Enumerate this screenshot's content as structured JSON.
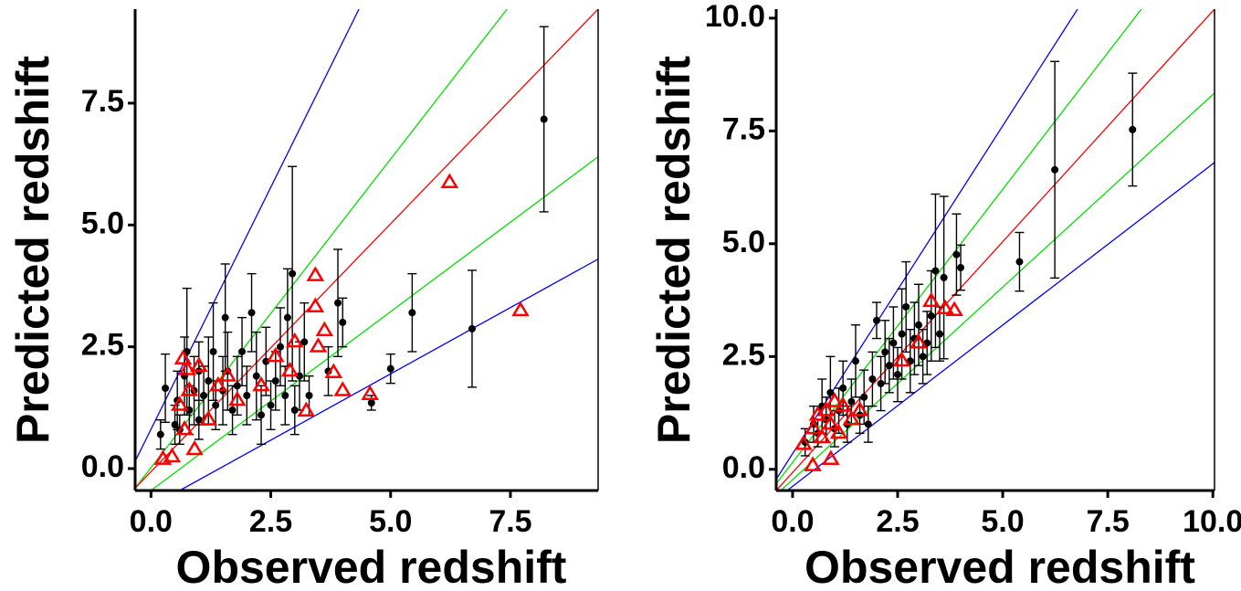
{
  "chart_data": [
    {
      "type": "scatter",
      "xlabel": "Observed redshift",
      "ylabel": "Predicted redshift",
      "xlim": [
        -0.33,
        9.33
      ],
      "ylim": [
        -0.45,
        9.43
      ],
      "xticks": [
        {
          "value": 0,
          "label": "0.0"
        },
        {
          "value": 2.5,
          "label": "2.5"
        },
        {
          "value": 5,
          "label": "5.0"
        },
        {
          "value": 7.5,
          "label": "7.5"
        }
      ],
      "yticks": [
        {
          "value": 0,
          "label": "0.0"
        },
        {
          "value": 2.5,
          "label": "2.5"
        },
        {
          "value": 5,
          "label": "5.0"
        },
        {
          "value": 7.5,
          "label": "7.5"
        }
      ],
      "lines": [
        {
          "color": "#0000ff",
          "x": [
            -0.33,
            4.34
          ],
          "y": [
            0.15,
            9.43
          ]
        },
        {
          "color": "#00e000",
          "x": [
            -0.33,
            7.43
          ],
          "y": [
            -0.4,
            9.43
          ]
        },
        {
          "color": "#ff0000",
          "x": [
            -0.33,
            9.33
          ],
          "y": [
            -0.4,
            9.43
          ]
        },
        {
          "color": "#00e000",
          "x": [
            0,
            9.33
          ],
          "y": [
            -0.45,
            6.4
          ]
        },
        {
          "color": "#0000ff",
          "x": [
            0.6,
            9.33
          ],
          "y": [
            -0.45,
            4.3
          ]
        }
      ],
      "series": [
        {
          "marker": "circle",
          "color": "#000000",
          "x": [
            0.2,
            0.3,
            0.5,
            0.55,
            0.6,
            0.7,
            0.75,
            0.8,
            0.9,
            1.0,
            1.0,
            1.1,
            1.2,
            1.3,
            1.35,
            1.5,
            1.55,
            1.6,
            1.7,
            1.8,
            1.9,
            2.0,
            2.1,
            2.2,
            2.3,
            2.4,
            2.5,
            2.6,
            2.7,
            2.8,
            2.85,
            2.95,
            3.0,
            3.1,
            3.2,
            3.3,
            3.7,
            3.9,
            4.0,
            4.6,
            5.0,
            5.45,
            6.7,
            8.2
          ],
          "y": [
            0.7,
            1.65,
            0.9,
            1.4,
            0.8,
            1.9,
            2.4,
            1.2,
            1.6,
            2.0,
            1.0,
            1.5,
            1.8,
            2.4,
            1.3,
            1.6,
            3.1,
            2.0,
            1.2,
            1.7,
            2.4,
            1.5,
            3.2,
            1.9,
            1.1,
            2.2,
            1.3,
            1.8,
            2.5,
            1.5,
            3.1,
            4.0,
            1.2,
            1.9,
            2.6,
            1.5,
            2.0,
            3.4,
            3.0,
            1.35,
            2.05,
            3.2,
            2.87,
            7.17
          ],
          "errors": [
            0.3,
            0.7,
            0.4,
            0.6,
            0.3,
            0.8,
            1.3,
            0.5,
            0.7,
            0.6,
            0.4,
            0.6,
            0.9,
            1.0,
            0.5,
            0.7,
            1.1,
            0.8,
            0.5,
            0.6,
            0.7,
            0.6,
            0.8,
            0.9,
            0.6,
            0.7,
            0.5,
            0.6,
            0.8,
            0.6,
            1.0,
            2.2,
            0.5,
            0.7,
            0.8,
            0.4,
            0.5,
            1.1,
            0.5,
            0.15,
            0.3,
            0.8,
            1.2,
            1.9
          ]
        },
        {
          "marker": "triangle",
          "color": "#ff0000",
          "x": [
            6.23,
            7.71,
            3.43,
            3.43,
            3.62,
            3.49,
            4.0,
            4.57,
            3.24,
            3.81,
            0.25,
            0.44,
            0.91,
            0.67,
            0.76,
            0.6,
            0.8,
            1.0,
            1.2,
            1.4,
            1.8,
            2.3,
            2.6,
            2.9,
            1.6,
            0.7,
            3.0
          ],
          "y": [
            5.87,
            3.24,
            3.96,
            3.32,
            2.83,
            2.5,
            1.6,
            1.52,
            1.18,
            1.97,
            0.19,
            0.24,
            0.39,
            2.25,
            2.03,
            1.3,
            1.6,
            2.1,
            1.0,
            1.7,
            1.4,
            1.7,
            2.3,
            2.0,
            1.9,
            0.8,
            2.6
          ]
        }
      ]
    },
    {
      "type": "scatter",
      "xlabel": "Observed redshift",
      "ylabel": "Predicted redshift",
      "xlim": [
        -0.39,
        10.04
      ],
      "ylim": [
        -0.47,
        10.2
      ],
      "xticks": [
        {
          "value": 0,
          "label": "0.0"
        },
        {
          "value": 2.5,
          "label": "2.5"
        },
        {
          "value": 5,
          "label": "5.0"
        },
        {
          "value": 7.5,
          "label": "7.5"
        },
        {
          "value": 10,
          "label": "10.0"
        }
      ],
      "yticks": [
        {
          "value": 0,
          "label": "0.0"
        },
        {
          "value": 2.5,
          "label": "2.5"
        },
        {
          "value": 5,
          "label": "5.0"
        },
        {
          "value": 7.5,
          "label": "7.5"
        },
        {
          "value": 10,
          "label": "10.0"
        }
      ],
      "lines": [
        {
          "color": "#0000ff",
          "x": [
            -0.39,
            6.78
          ],
          "y": [
            -0.22,
            10.2
          ]
        },
        {
          "color": "#00e000",
          "x": [
            -0.39,
            8.3
          ],
          "y": [
            -0.32,
            10.2
          ]
        },
        {
          "color": "#ff0000",
          "x": [
            -0.39,
            10.04
          ],
          "y": [
            -0.47,
            10.2
          ]
        },
        {
          "color": "#00e000",
          "x": [
            -0.28,
            10.04
          ],
          "y": [
            -0.47,
            8.34
          ]
        },
        {
          "color": "#0000ff",
          "x": [
            -0.13,
            10.04
          ],
          "y": [
            -0.47,
            6.8
          ]
        }
      ],
      "series": [
        {
          "marker": "circle",
          "color": "#000000",
          "x": [
            0.3,
            0.5,
            0.6,
            0.7,
            0.8,
            0.9,
            1.0,
            1.1,
            1.2,
            1.3,
            1.4,
            1.5,
            1.6,
            1.7,
            1.8,
            1.9,
            2.0,
            2.1,
            2.2,
            2.3,
            2.4,
            2.5,
            2.6,
            2.7,
            2.8,
            2.9,
            3.0,
            3.1,
            3.2,
            3.3,
            3.4,
            3.5,
            3.6,
            3.9,
            4.0,
            5.4,
            6.24,
            8.09
          ],
          "y": [
            0.6,
            1.0,
            0.8,
            1.4,
            1.1,
            1.7,
            0.9,
            1.3,
            1.8,
            1.0,
            1.5,
            2.4,
            1.2,
            1.6,
            1.0,
            2.0,
            3.3,
            1.9,
            2.6,
            2.3,
            2.8,
            2.1,
            3.0,
            3.6,
            2.4,
            2.9,
            3.2,
            2.5,
            2.8,
            3.4,
            4.4,
            3.0,
            4.25,
            4.76,
            4.47,
            4.6,
            6.64,
            7.53
          ],
          "errors": [
            0.3,
            0.4,
            0.3,
            0.6,
            0.5,
            0.8,
            0.4,
            0.5,
            0.6,
            0.4,
            0.5,
            0.8,
            0.4,
            0.6,
            0.4,
            0.6,
            0.4,
            0.6,
            0.7,
            0.6,
            0.8,
            0.6,
            1.0,
            1.0,
            0.7,
            0.8,
            0.9,
            0.6,
            0.7,
            1.0,
            1.7,
            0.6,
            1.8,
            0.9,
            0.5,
            0.65,
            2.4,
            1.25
          ]
        },
        {
          "marker": "triangle",
          "color": "#ff0000",
          "x": [
            0.26,
            0.48,
            0.91,
            0.5,
            0.6,
            0.7,
            0.8,
            0.9,
            1.0,
            1.1,
            1.2,
            1.4,
            1.6,
            2.6,
            3.0,
            3.3,
            3.63,
            3.85
          ],
          "y": [
            0.55,
            0.08,
            0.22,
            0.9,
            1.2,
            0.7,
            1.3,
            1.0,
            1.5,
            0.8,
            1.4,
            1.1,
            1.3,
            2.4,
            2.8,
            3.72,
            3.56,
            3.52
          ]
        }
      ]
    }
  ]
}
